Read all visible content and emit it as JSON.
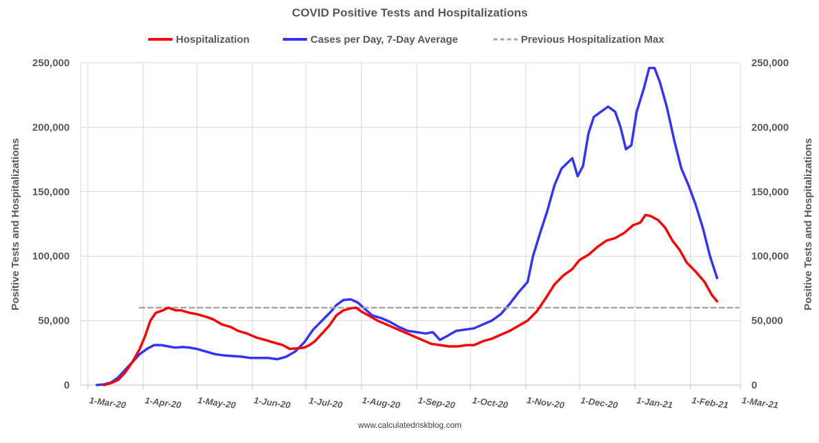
{
  "chart_data": {
    "type": "line",
    "title": "COVID Positive Tests and Hospitalizations",
    "ylabel_left": "Positive Tests and Hospitalizations",
    "ylabel_right": "Positive Tests and Hospitalizations",
    "ylim": [
      0,
      250000
    ],
    "yticks": [
      "0",
      "50,000",
      "100,000",
      "150,000",
      "200,000",
      "250,000"
    ],
    "yticks_values": [
      0,
      50000,
      100000,
      150000,
      200000,
      250000
    ],
    "x_tick_labels": [
      "1-Mar-20",
      "1-Apr-20",
      "1-May-20",
      "1-Jun-20",
      "1-Jul-20",
      "1-Aug-20",
      "1-Sep-20",
      "1-Oct-20",
      "1-Nov-20",
      "1-Dec-20",
      "1-Jan-21",
      "1-Feb-21",
      "1-Mar-21"
    ],
    "x_tick_dates": [
      "2020-03-01",
      "2020-04-01",
      "2020-05-01",
      "2020-06-01",
      "2020-07-01",
      "2020-08-01",
      "2020-09-01",
      "2020-10-01",
      "2020-11-01",
      "2020-12-01",
      "2021-01-01",
      "2021-02-01",
      "2021-03-01"
    ],
    "xlim": [
      "2020-02-26",
      "2021-03-01"
    ],
    "grid": "vertical",
    "legend_position": "top",
    "series": [
      {
        "name": "Hospitalization",
        "color": "#ff0000",
        "style": "solid",
        "points": [
          [
            "2020-03-10",
            0
          ],
          [
            "2020-03-14",
            1500
          ],
          [
            "2020-03-18",
            4000
          ],
          [
            "2020-03-22",
            10000
          ],
          [
            "2020-03-26",
            18000
          ],
          [
            "2020-03-30",
            28000
          ],
          [
            "2020-04-02",
            38000
          ],
          [
            "2020-04-05",
            50000
          ],
          [
            "2020-04-08",
            56000
          ],
          [
            "2020-04-12",
            58000
          ],
          [
            "2020-04-15",
            60000
          ],
          [
            "2020-04-19",
            58000
          ],
          [
            "2020-04-22",
            58000
          ],
          [
            "2020-04-27",
            56000
          ],
          [
            "2020-05-01",
            55000
          ],
          [
            "2020-05-06",
            53000
          ],
          [
            "2020-05-10",
            51000
          ],
          [
            "2020-05-15",
            47000
          ],
          [
            "2020-05-20",
            45000
          ],
          [
            "2020-05-24",
            42000
          ],
          [
            "2020-05-29",
            40000
          ],
          [
            "2020-06-03",
            37000
          ],
          [
            "2020-06-08",
            35000
          ],
          [
            "2020-06-13",
            33000
          ],
          [
            "2020-06-18",
            31000
          ],
          [
            "2020-06-22",
            28000
          ],
          [
            "2020-06-26",
            28500
          ],
          [
            "2020-06-30",
            29000
          ],
          [
            "2020-07-03",
            31000
          ],
          [
            "2020-07-06",
            34000
          ],
          [
            "2020-07-10",
            40000
          ],
          [
            "2020-07-14",
            46000
          ],
          [
            "2020-07-18",
            54000
          ],
          [
            "2020-07-22",
            58000
          ],
          [
            "2020-07-26",
            59500
          ],
          [
            "2020-07-29",
            60000
          ],
          [
            "2020-08-01",
            57000
          ],
          [
            "2020-08-05",
            54000
          ],
          [
            "2020-08-10",
            50000
          ],
          [
            "2020-08-15",
            47000
          ],
          [
            "2020-08-20",
            44000
          ],
          [
            "2020-08-25",
            41000
          ],
          [
            "2020-08-30",
            38000
          ],
          [
            "2020-09-04",
            35000
          ],
          [
            "2020-09-09",
            32000
          ],
          [
            "2020-09-14",
            31000
          ],
          [
            "2020-09-19",
            30000
          ],
          [
            "2020-09-24",
            30000
          ],
          [
            "2020-09-29",
            31000
          ],
          [
            "2020-10-03",
            31000
          ],
          [
            "2020-10-08",
            34000
          ],
          [
            "2020-10-13",
            36000
          ],
          [
            "2020-10-18",
            39000
          ],
          [
            "2020-10-23",
            42000
          ],
          [
            "2020-10-28",
            46000
          ],
          [
            "2020-11-02",
            50000
          ],
          [
            "2020-11-07",
            57000
          ],
          [
            "2020-11-12",
            67000
          ],
          [
            "2020-11-17",
            78000
          ],
          [
            "2020-11-22",
            85000
          ],
          [
            "2020-11-27",
            90000
          ],
          [
            "2020-12-01",
            97000
          ],
          [
            "2020-12-06",
            101000
          ],
          [
            "2020-12-11",
            107000
          ],
          [
            "2020-12-16",
            112000
          ],
          [
            "2020-12-21",
            114000
          ],
          [
            "2020-12-26",
            118000
          ],
          [
            "2020-12-31",
            124000
          ],
          [
            "2021-01-04",
            126000
          ],
          [
            "2021-01-07",
            132000
          ],
          [
            "2021-01-10",
            131000
          ],
          [
            "2021-01-14",
            128000
          ],
          [
            "2021-01-18",
            122000
          ],
          [
            "2021-01-22",
            112000
          ],
          [
            "2021-01-26",
            105000
          ],
          [
            "2021-01-30",
            95000
          ],
          [
            "2021-02-04",
            88000
          ],
          [
            "2021-02-09",
            80000
          ],
          [
            "2021-02-13",
            70000
          ],
          [
            "2021-02-16",
            65000
          ]
        ]
      },
      {
        "name": "Cases per Day, 7-Day Average",
        "color": "#3333ff",
        "style": "solid",
        "points": [
          [
            "2020-03-06",
            0
          ],
          [
            "2020-03-10",
            500
          ],
          [
            "2020-03-14",
            2000
          ],
          [
            "2020-03-18",
            6000
          ],
          [
            "2020-03-22",
            12000
          ],
          [
            "2020-03-26",
            18000
          ],
          [
            "2020-03-30",
            24000
          ],
          [
            "2020-04-03",
            28000
          ],
          [
            "2020-04-07",
            31000
          ],
          [
            "2020-04-11",
            31000
          ],
          [
            "2020-04-15",
            30000
          ],
          [
            "2020-04-19",
            29000
          ],
          [
            "2020-04-23",
            29500
          ],
          [
            "2020-04-27",
            29000
          ],
          [
            "2020-05-01",
            28000
          ],
          [
            "2020-05-06",
            26000
          ],
          [
            "2020-05-11",
            24000
          ],
          [
            "2020-05-16",
            23000
          ],
          [
            "2020-05-21",
            22500
          ],
          [
            "2020-05-26",
            22000
          ],
          [
            "2020-05-31",
            21000
          ],
          [
            "2020-06-05",
            21000
          ],
          [
            "2020-06-10",
            21000
          ],
          [
            "2020-06-15",
            20000
          ],
          [
            "2020-06-20",
            22000
          ],
          [
            "2020-06-25",
            26000
          ],
          [
            "2020-06-30",
            33000
          ],
          [
            "2020-07-05",
            43000
          ],
          [
            "2020-07-10",
            50000
          ],
          [
            "2020-07-15",
            57000
          ],
          [
            "2020-07-18",
            62000
          ],
          [
            "2020-07-22",
            66000
          ],
          [
            "2020-07-26",
            66500
          ],
          [
            "2020-07-30",
            64000
          ],
          [
            "2020-08-03",
            59000
          ],
          [
            "2020-08-07",
            54000
          ],
          [
            "2020-08-12",
            52000
          ],
          [
            "2020-08-17",
            49000
          ],
          [
            "2020-08-22",
            45000
          ],
          [
            "2020-08-27",
            42000
          ],
          [
            "2020-09-01",
            41000
          ],
          [
            "2020-09-06",
            40000
          ],
          [
            "2020-09-10",
            41000
          ],
          [
            "2020-09-14",
            35000
          ],
          [
            "2020-09-18",
            38000
          ],
          [
            "2020-09-23",
            42000
          ],
          [
            "2020-09-28",
            43000
          ],
          [
            "2020-10-03",
            44000
          ],
          [
            "2020-10-08",
            47000
          ],
          [
            "2020-10-13",
            50000
          ],
          [
            "2020-10-18",
            55000
          ],
          [
            "2020-10-23",
            63000
          ],
          [
            "2020-10-28",
            72000
          ],
          [
            "2020-11-02",
            80000
          ],
          [
            "2020-11-05",
            100000
          ],
          [
            "2020-11-09",
            118000
          ],
          [
            "2020-11-13",
            135000
          ],
          [
            "2020-11-17",
            155000
          ],
          [
            "2020-11-21",
            168000
          ],
          [
            "2020-11-24",
            172000
          ],
          [
            "2020-11-27",
            176000
          ],
          [
            "2020-11-30",
            162000
          ],
          [
            "2020-12-03",
            170000
          ],
          [
            "2020-12-06",
            195000
          ],
          [
            "2020-12-09",
            208000
          ],
          [
            "2020-12-13",
            212000
          ],
          [
            "2020-12-17",
            216000
          ],
          [
            "2020-12-21",
            212000
          ],
          [
            "2020-12-24",
            200000
          ],
          [
            "2020-12-27",
            183000
          ],
          [
            "2020-12-30",
            186000
          ],
          [
            "2021-01-02",
            212000
          ],
          [
            "2021-01-06",
            230000
          ],
          [
            "2021-01-09",
            246000
          ],
          [
            "2021-01-12",
            246000
          ],
          [
            "2021-01-15",
            235000
          ],
          [
            "2021-01-19",
            215000
          ],
          [
            "2021-01-23",
            190000
          ],
          [
            "2021-01-27",
            168000
          ],
          [
            "2021-01-31",
            155000
          ],
          [
            "2021-02-04",
            140000
          ],
          [
            "2021-02-08",
            122000
          ],
          [
            "2021-02-12",
            100000
          ],
          [
            "2021-02-16",
            83000
          ]
        ]
      },
      {
        "name": "Previous Hospitalization Max",
        "color": "#a6a6a6",
        "style": "dashed",
        "points": [
          [
            "2020-03-30",
            60000
          ],
          [
            "2021-02-28",
            60000
          ]
        ]
      }
    ]
  },
  "source": "www.calculatedriskblog.com"
}
